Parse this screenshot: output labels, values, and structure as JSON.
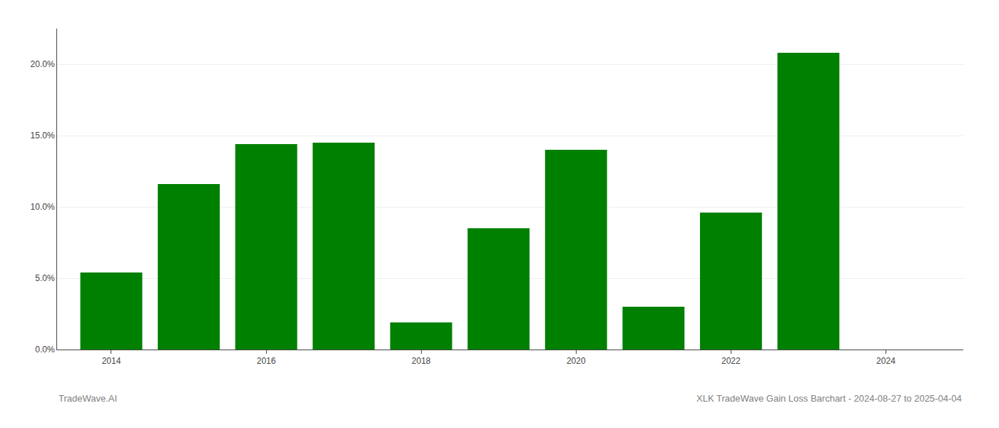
{
  "chart_data": {
    "type": "bar",
    "x": [
      2014,
      2015,
      2016,
      2017,
      2018,
      2019,
      2020,
      2021,
      2022,
      2023
    ],
    "values": [
      0.054,
      0.116,
      0.144,
      0.145,
      0.019,
      0.085,
      0.14,
      0.03,
      0.096,
      0.208
    ],
    "color": "#008000",
    "xlim": [
      2013.3,
      2025.0
    ],
    "xticks": [
      2014,
      2016,
      2018,
      2020,
      2022,
      2024
    ],
    "ylim": [
      0,
      0.225
    ],
    "yticks": [
      {
        "value": 0.0,
        "label": "0.0%"
      },
      {
        "value": 0.05,
        "label": "5.0%"
      },
      {
        "value": 0.1,
        "label": "10.0%"
      },
      {
        "value": 0.15,
        "label": "15.0%"
      },
      {
        "value": 0.2,
        "label": "20.0%"
      }
    ],
    "grid": true,
    "annotations": [
      "TradeWave.AI",
      "XLK TradeWave Gain Loss Barchart - 2024-08-27 to 2025-04-04"
    ]
  }
}
